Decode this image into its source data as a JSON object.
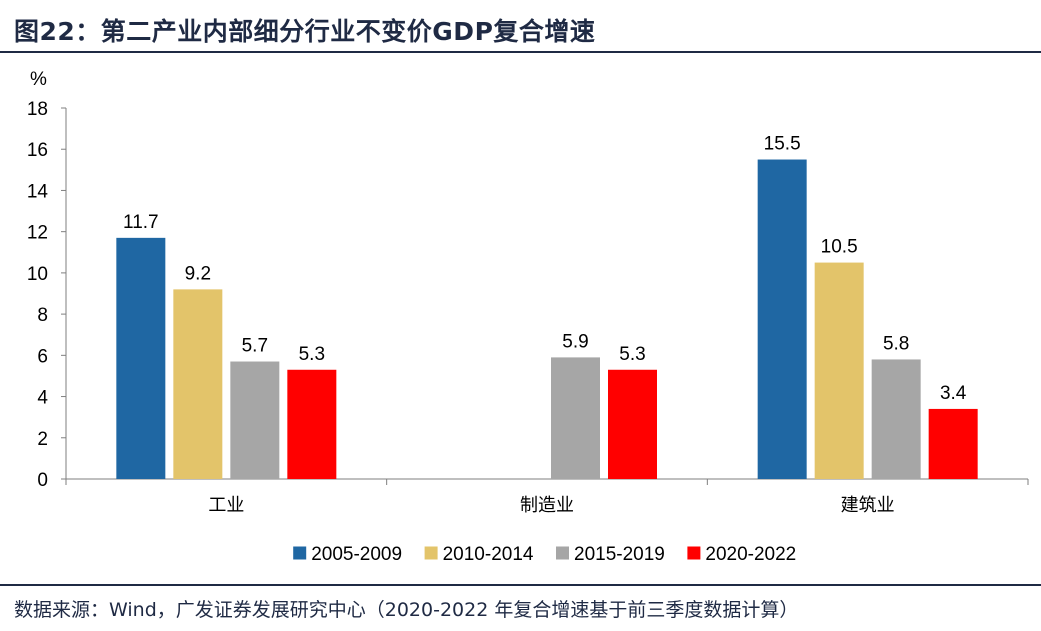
{
  "title": "图22：第二产业内部细分行业不变价GDP复合增速",
  "source": "数据来源：Wind，广发证券发展研究中心（2020-2022 年复合增速基于前三季度数据计算）",
  "chart_data": {
    "type": "bar",
    "title": "图22：第二产业内部细分行业不变价GDP复合增速",
    "ylabel": "%",
    "xlabel": "",
    "ylim": [
      0,
      18
    ],
    "yticks": [
      0,
      2,
      4,
      6,
      8,
      10,
      12,
      14,
      16,
      18
    ],
    "categories": [
      "工业",
      "制造业",
      "建筑业"
    ],
    "series": [
      {
        "name": "2005-2009",
        "color": "#1f67a3",
        "values": [
          11.7,
          null,
          15.5
        ]
      },
      {
        "name": "2010-2014",
        "color": "#e3c46a",
        "values": [
          9.2,
          null,
          10.5
        ]
      },
      {
        "name": "2015-2019",
        "color": "#a6a6a6",
        "values": [
          5.7,
          5.9,
          5.8
        ]
      },
      {
        "name": "2020-2022",
        "color": "#ff0000",
        "values": [
          5.3,
          5.3,
          3.4
        ]
      }
    ],
    "data_labels": true,
    "grid": false,
    "legend": "bottom"
  }
}
